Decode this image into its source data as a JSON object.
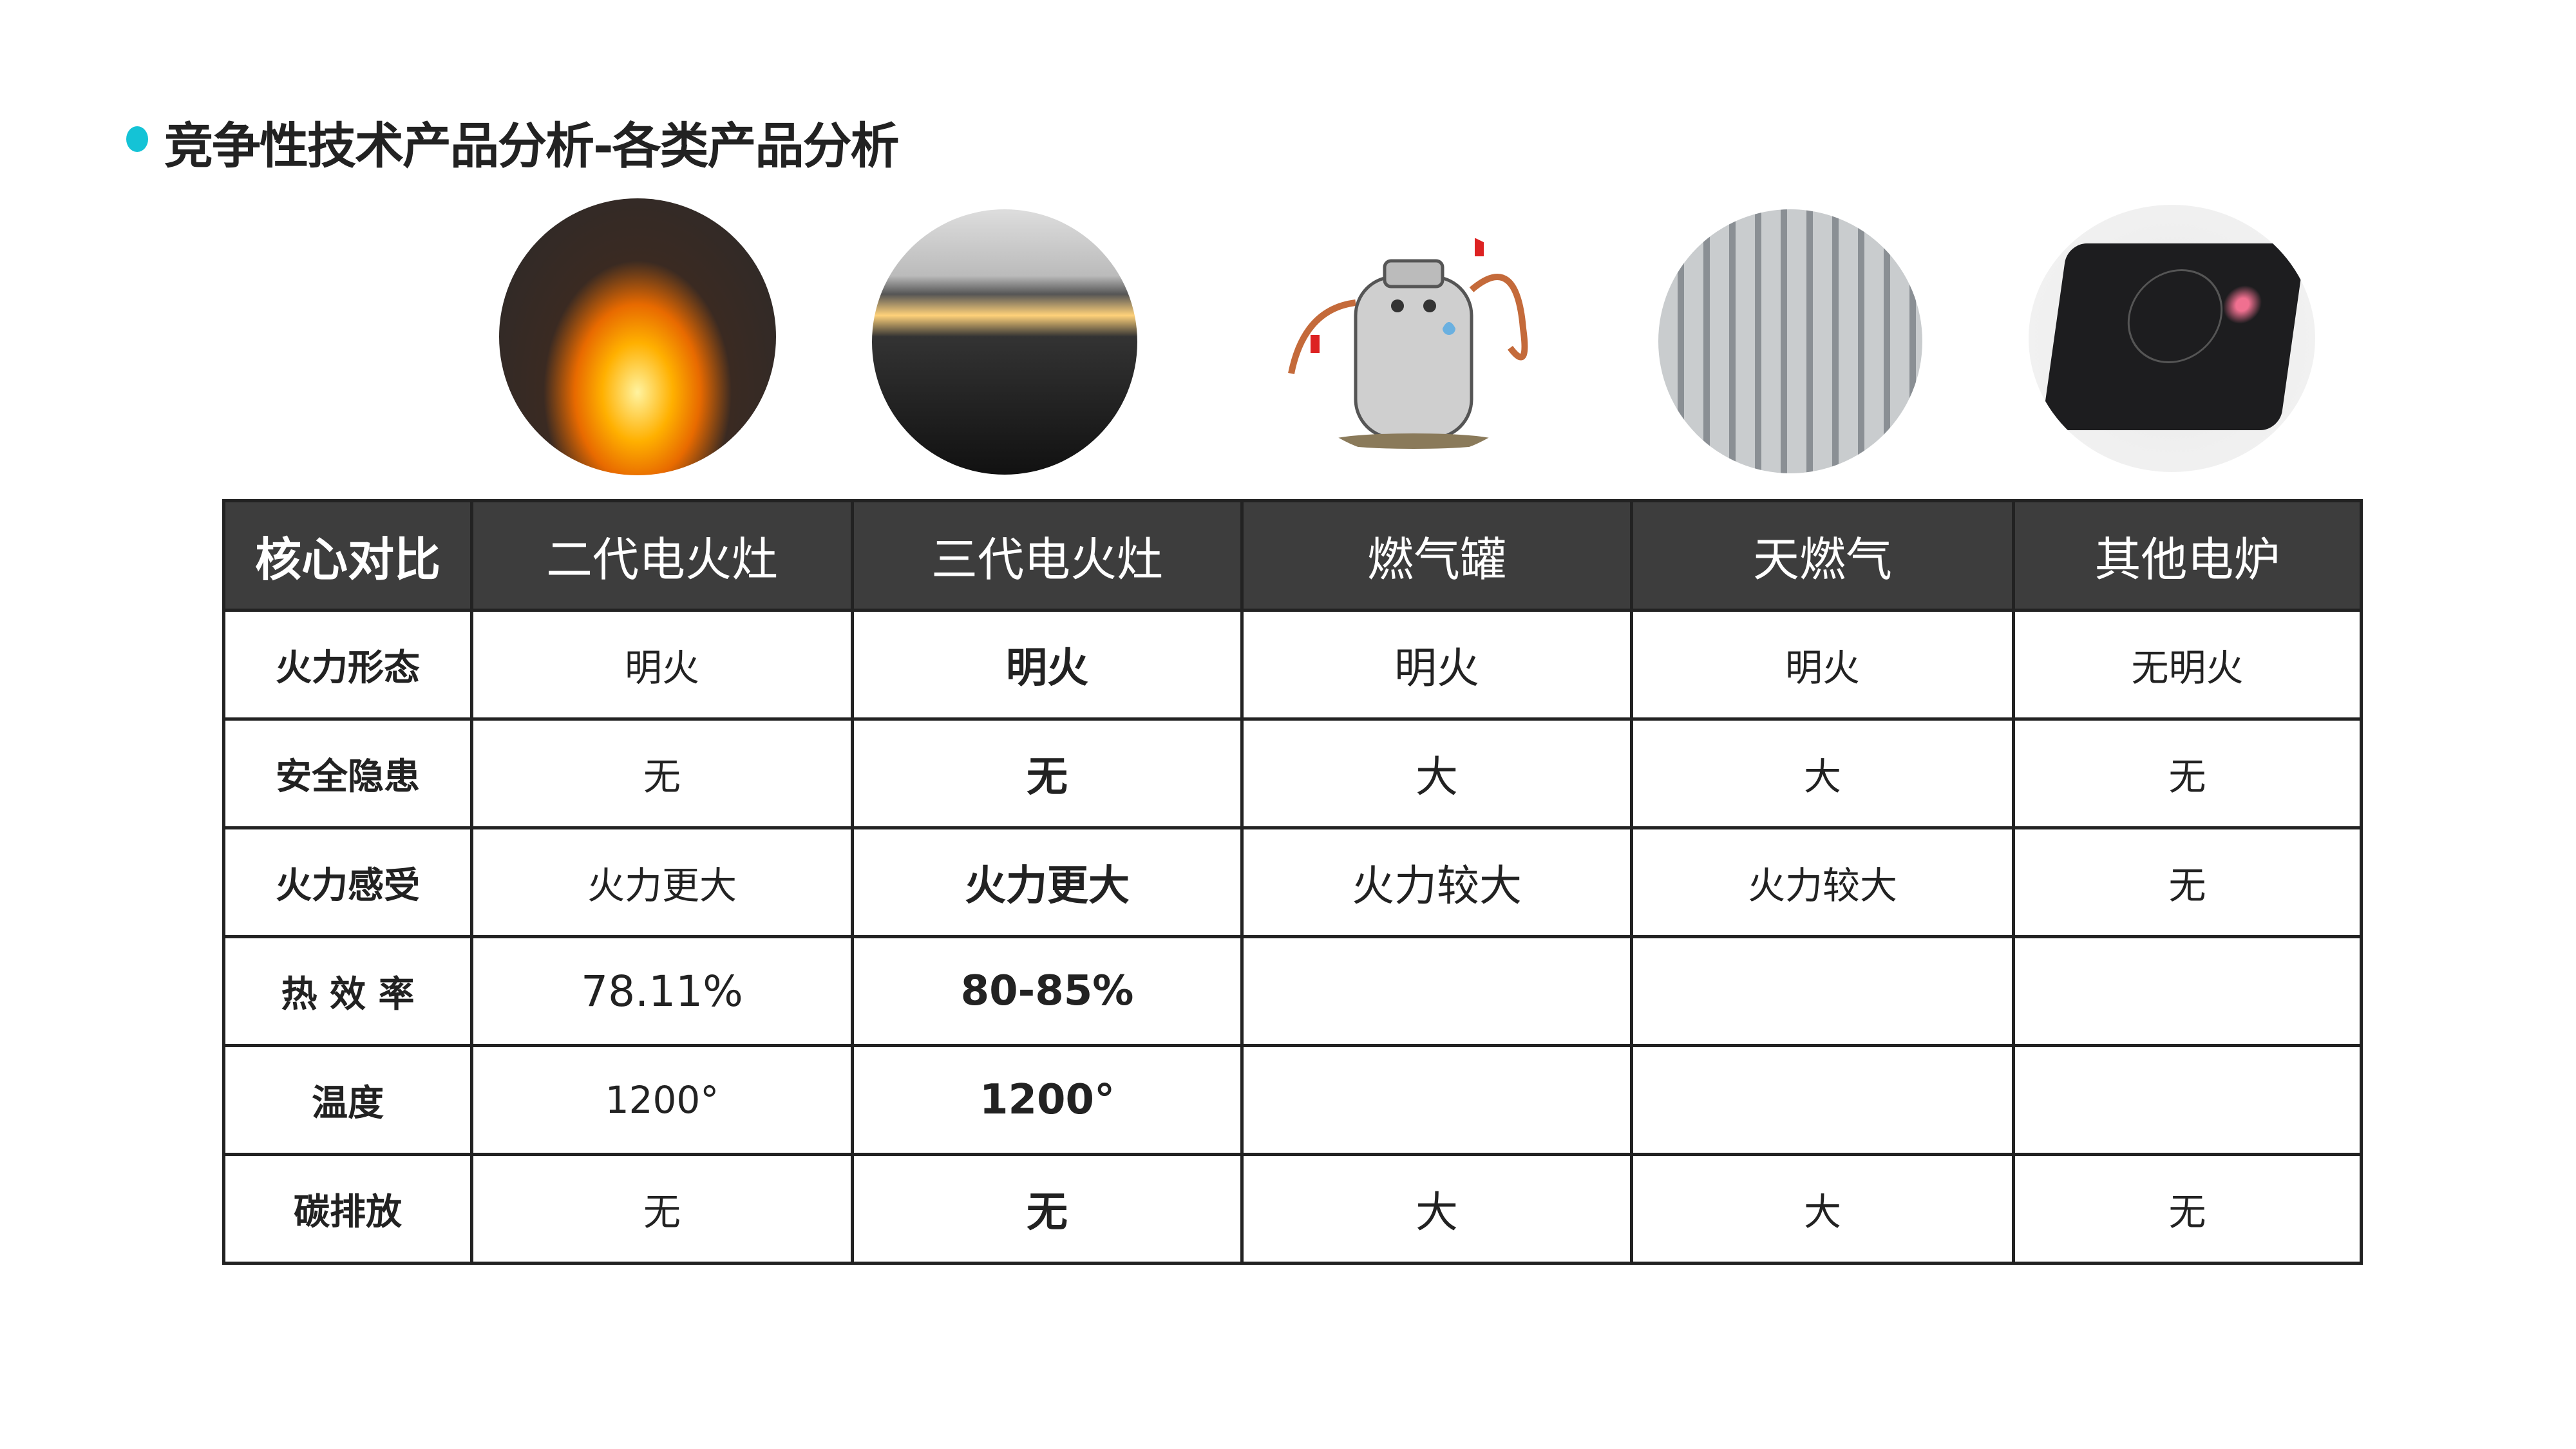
{
  "title": "竞争性技术产品分析-各类产品分析",
  "accent_color": "#14c3d6",
  "header_color": "#3d3d3d",
  "images": [
    "flame-photo",
    "electric-burner-photo",
    "gas-cylinder-cartoon",
    "gas-plant-photo",
    "induction-cooker-photo"
  ],
  "table": {
    "headers": [
      "核心对比",
      "二代电火灶",
      "三代电火灶",
      "燃气罐",
      "天燃气",
      "其他电炉"
    ],
    "rows": [
      {
        "label": "火力形态",
        "cells": [
          "明火",
          "明火",
          "明火",
          "明火",
          "无明火"
        ]
      },
      {
        "label": "安全隐患",
        "cells": [
          "无",
          "无",
          "大",
          "大",
          "无"
        ]
      },
      {
        "label": "火力感受",
        "cells": [
          "火力更大",
          "火力更大",
          "火力较大",
          "火力较大",
          "无"
        ]
      },
      {
        "label": "热 效 率",
        "cells": [
          "78.11%",
          "80-85%",
          "",
          "",
          ""
        ]
      },
      {
        "label": "温度",
        "cells": [
          "1200°",
          "1200°",
          "",
          "",
          ""
        ]
      },
      {
        "label": "碳排放",
        "cells": [
          "无",
          "无",
          "大",
          "大",
          "无"
        ]
      }
    ]
  }
}
